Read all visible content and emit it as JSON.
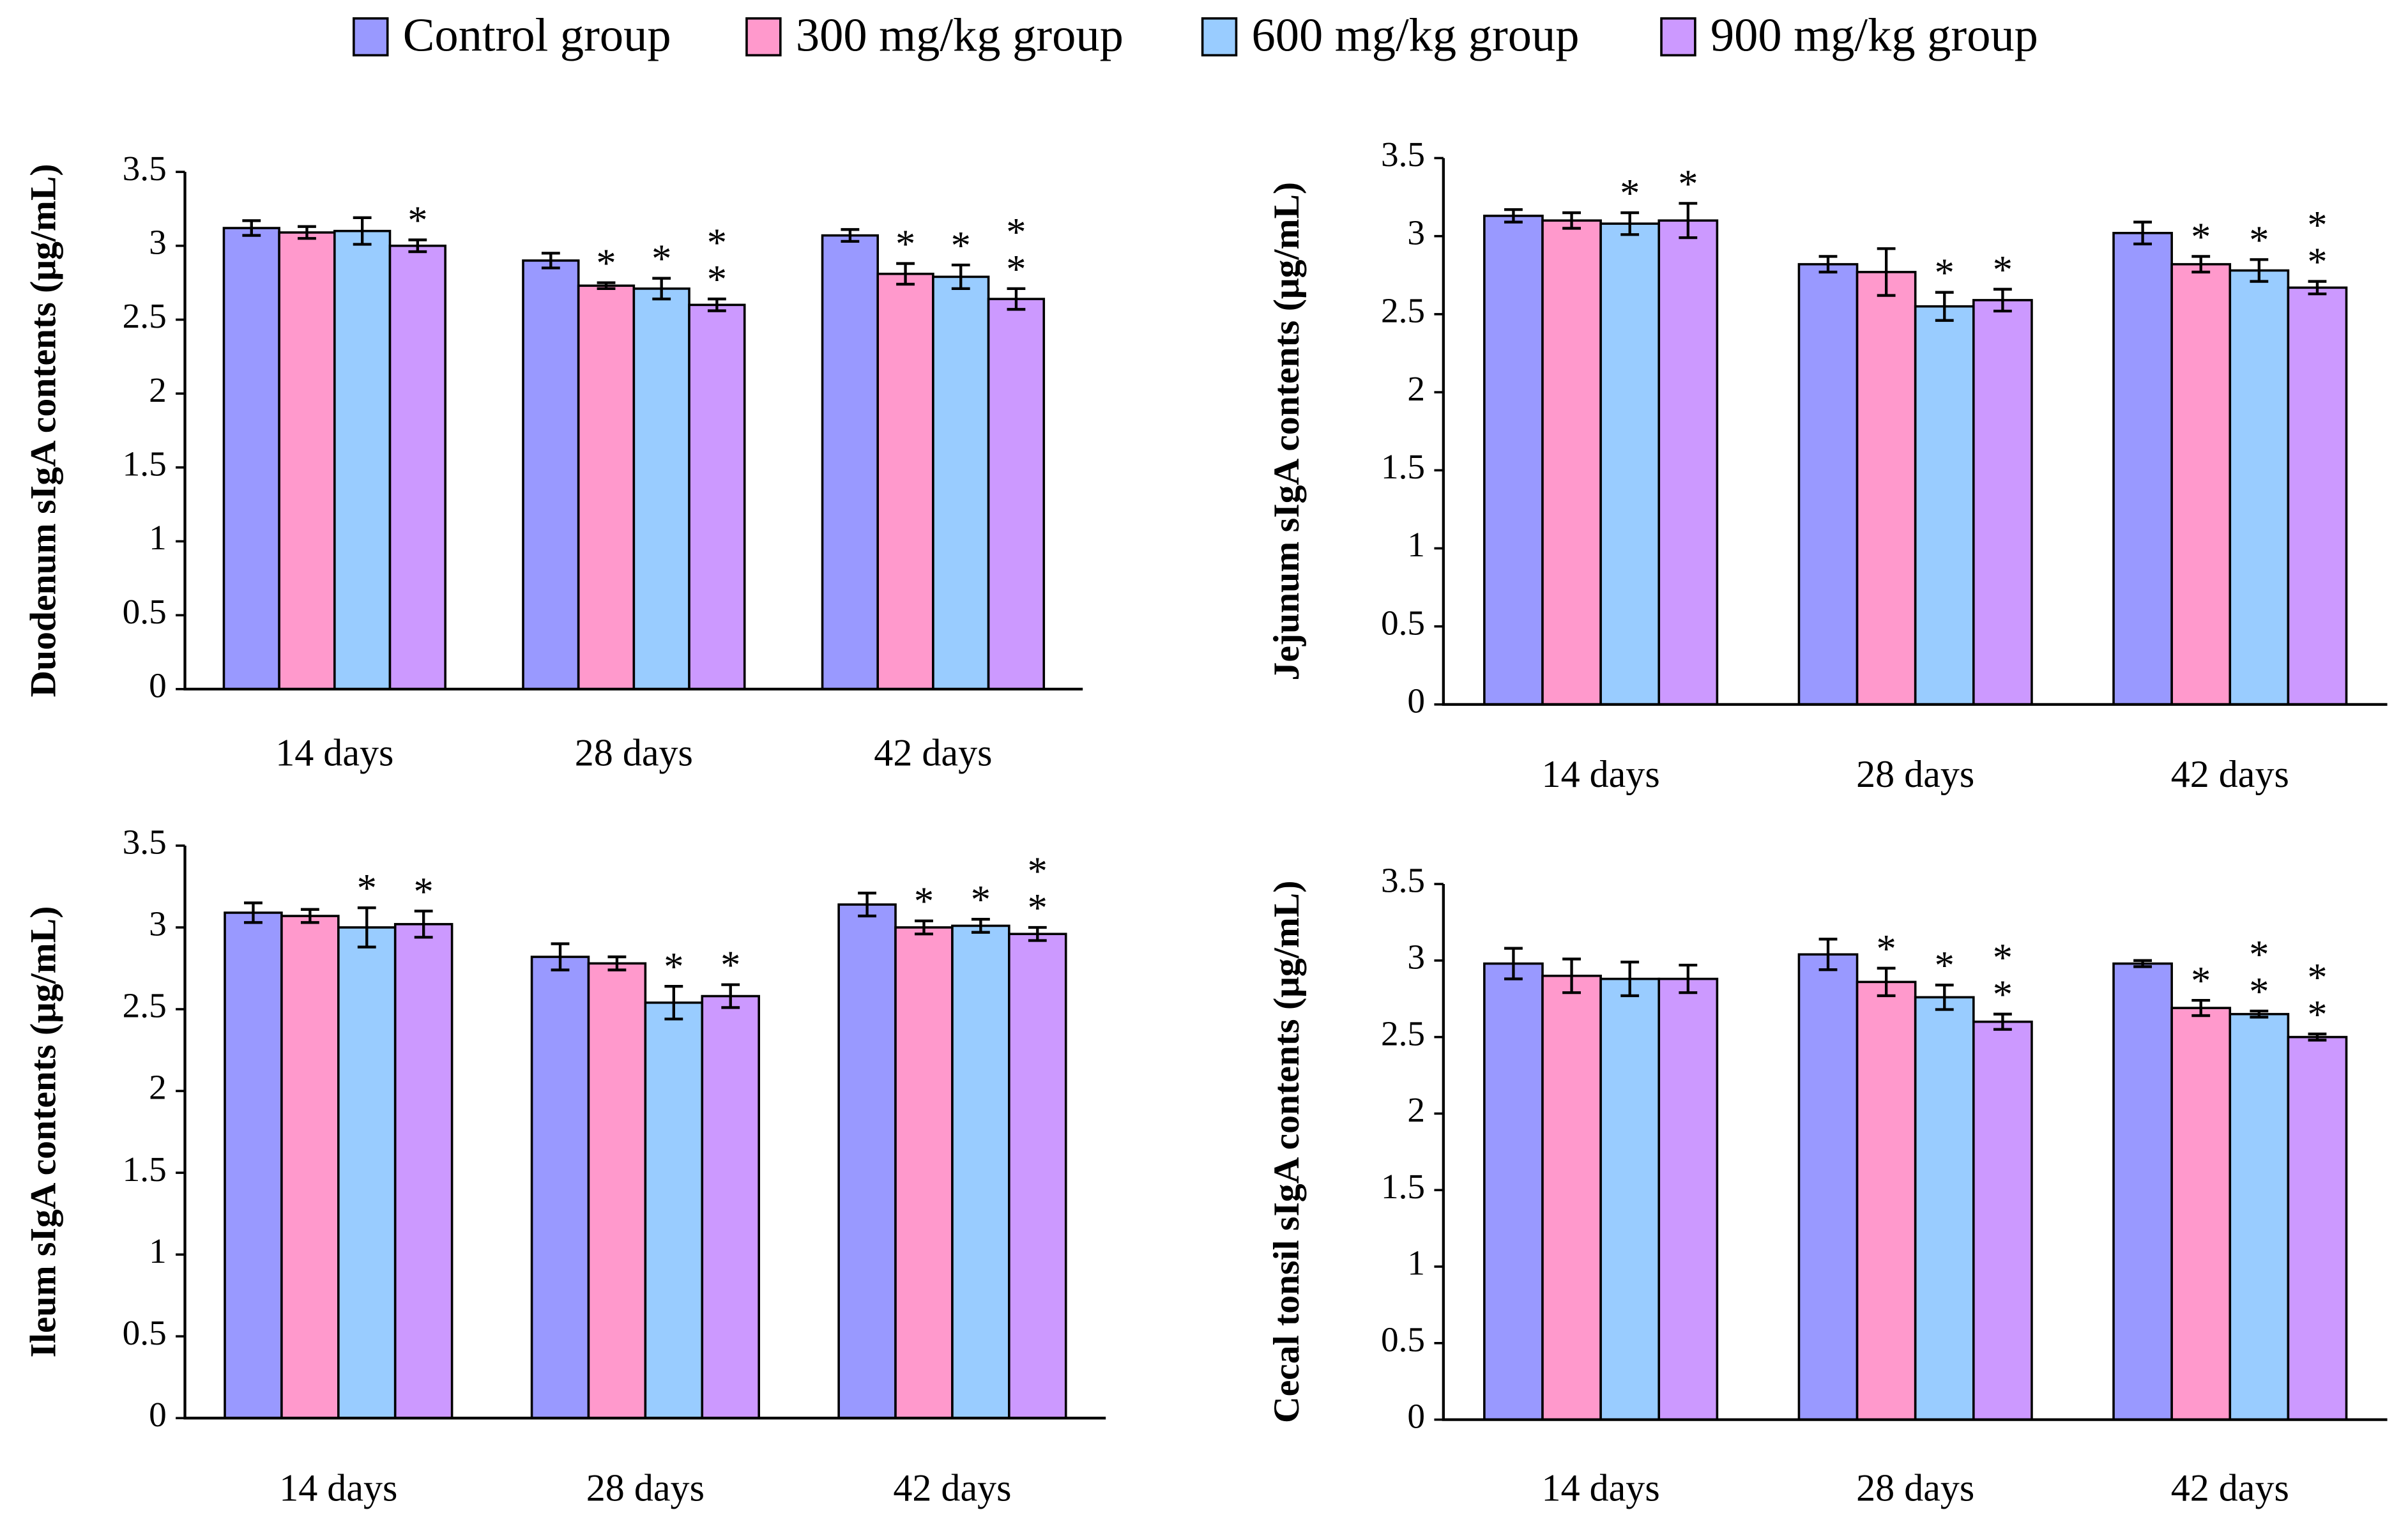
{
  "chart_data": [
    {
      "type": "bar",
      "ylabel": "Duodenum sIgA contents (μg/mL)",
      "categories": [
        "14 days",
        "28 days",
        "42 days"
      ],
      "series": [
        {
          "name": "Control group",
          "color": "#9999ff",
          "values": [
            3.12,
            2.9,
            3.07
          ],
          "errors": [
            0.05,
            0.05,
            0.04
          ],
          "annotations": [
            null,
            null,
            null
          ]
        },
        {
          "name": "300 mg/kg group",
          "color": "#ff99cc",
          "values": [
            3.09,
            2.73,
            2.81
          ],
          "errors": [
            0.04,
            0.02,
            0.07
          ],
          "annotations": [
            null,
            "*",
            "*"
          ]
        },
        {
          "name": "600 mg/kg group",
          "color": "#99ccff",
          "values": [
            3.1,
            2.71,
            2.79
          ],
          "errors": [
            0.09,
            0.07,
            0.08
          ],
          "annotations": [
            null,
            "*",
            "*"
          ]
        },
        {
          "name": "900 mg/kg group",
          "color": "#cc99ff",
          "values": [
            3.0,
            2.6,
            2.64
          ],
          "errors": [
            0.04,
            0.04,
            0.07
          ],
          "annotations": [
            "*",
            "**",
            "**"
          ]
        }
      ],
      "ylim": [
        0,
        3.5
      ],
      "yticks": [
        0,
        0.5,
        1,
        1.5,
        2,
        2.5,
        3,
        3.5
      ]
    },
    {
      "type": "bar",
      "ylabel": "Jejunum sIgA contents (μg/mL)",
      "categories": [
        "14 days",
        "28 days",
        "42 days"
      ],
      "series": [
        {
          "color": "#9999ff",
          "values": [
            3.13,
            2.82,
            3.02
          ],
          "errors": [
            0.04,
            0.05,
            0.07
          ],
          "annotations": [
            null,
            null,
            null
          ]
        },
        {
          "color": "#ff99cc",
          "values": [
            3.1,
            2.77,
            2.82
          ],
          "errors": [
            0.05,
            0.15,
            0.05
          ],
          "annotations": [
            null,
            null,
            "*"
          ]
        },
        {
          "color": "#99ccff",
          "values": [
            3.08,
            2.55,
            2.78
          ],
          "errors": [
            0.07,
            0.09,
            0.07
          ],
          "annotations": [
            "*",
            "*",
            "*"
          ]
        },
        {
          "color": "#cc99ff",
          "values": [
            3.1,
            2.59,
            2.67
          ],
          "errors": [
            0.11,
            0.07,
            0.04
          ],
          "annotations": [
            "*",
            "*",
            "**"
          ]
        }
      ],
      "ylim": [
        0,
        3.5
      ],
      "yticks": [
        0,
        0.5,
        1,
        1.5,
        2,
        2.5,
        3,
        3.5
      ]
    },
    {
      "type": "bar",
      "ylabel": "Ileum sIgA contents (μg/mL)",
      "categories": [
        "14 days",
        "28 days",
        "42 days"
      ],
      "series": [
        {
          "color": "#9999ff",
          "values": [
            3.09,
            2.82,
            3.14
          ],
          "errors": [
            0.06,
            0.08,
            0.07
          ],
          "annotations": [
            null,
            null,
            null
          ]
        },
        {
          "color": "#ff99cc",
          "values": [
            3.07,
            2.78,
            3.0
          ],
          "errors": [
            0.04,
            0.04,
            0.04
          ],
          "annotations": [
            null,
            null,
            "*"
          ]
        },
        {
          "color": "#99ccff",
          "values": [
            3.0,
            2.54,
            3.01
          ],
          "errors": [
            0.12,
            0.1,
            0.04
          ],
          "annotations": [
            "*",
            "*",
            "*"
          ]
        },
        {
          "color": "#cc99ff",
          "values": [
            3.02,
            2.58,
            2.96
          ],
          "errors": [
            0.08,
            0.07,
            0.04
          ],
          "annotations": [
            "*",
            "*",
            "**"
          ]
        }
      ],
      "ylim": [
        0,
        3.5
      ],
      "yticks": [
        0,
        0.5,
        1,
        1.5,
        2,
        2.5,
        3,
        3.5
      ]
    },
    {
      "type": "bar",
      "ylabel": "Cecal tonsil sIgA contents (μg/mL)",
      "categories": [
        "14 days",
        "28 days",
        "42 days"
      ],
      "series": [
        {
          "color": "#9999ff",
          "values": [
            2.98,
            3.04,
            2.98
          ],
          "errors": [
            0.1,
            0.1,
            0.02
          ],
          "annotations": [
            null,
            null,
            null
          ]
        },
        {
          "color": "#ff99cc",
          "values": [
            2.9,
            2.86,
            2.69
          ],
          "errors": [
            0.11,
            0.09,
            0.05
          ],
          "annotations": [
            null,
            "*",
            "*"
          ]
        },
        {
          "color": "#99ccff",
          "values": [
            2.88,
            2.76,
            2.65
          ],
          "errors": [
            0.11,
            0.08,
            0.02
          ],
          "annotations": [
            null,
            "*",
            "**"
          ]
        },
        {
          "color": "#cc99ff",
          "values": [
            2.88,
            2.6,
            2.5
          ],
          "errors": [
            0.09,
            0.05,
            0.02
          ],
          "annotations": [
            null,
            "**",
            "**"
          ]
        }
      ],
      "ylim": [
        0,
        3.5
      ],
      "yticks": [
        0,
        0.5,
        1,
        1.5,
        2,
        2.5,
        3,
        3.5
      ]
    }
  ]
}
